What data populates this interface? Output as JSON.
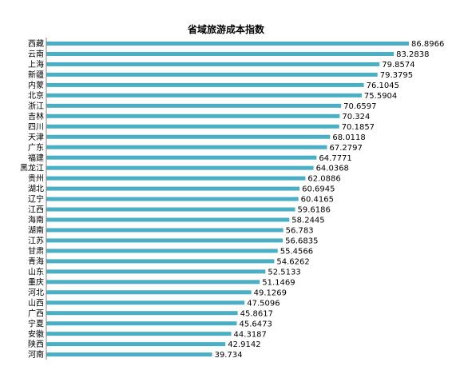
{
  "chart_data": {
    "type": "bar",
    "orientation": "horizontal",
    "title": "省域旅游成本指数",
    "xlabel": "",
    "ylabel": "",
    "xlim": [
      0,
      90
    ],
    "grid": false,
    "legend": "none",
    "bar_color": "#4aaec4",
    "categories": [
      "西藏",
      "云南",
      "上海",
      "新疆",
      "内蒙",
      "北京",
      "浙江",
      "吉林",
      "四川",
      "天津",
      "广东",
      "福建",
      "黑龙江",
      "贵州",
      "湖北",
      "辽宁",
      "江西",
      "海南",
      "湖南",
      "江苏",
      "甘肃",
      "青海",
      "山东",
      "重庆",
      "河北",
      "山西",
      "广西",
      "宁夏",
      "安徽",
      "陕西",
      "河南"
    ],
    "values": [
      86.8966,
      83.2838,
      79.8574,
      79.3795,
      76.1045,
      75.5904,
      70.6597,
      70.324,
      70.1857,
      68.0118,
      67.2797,
      64.7771,
      64.0368,
      62.0886,
      60.6945,
      60.4165,
      59.6186,
      58.2445,
      56.783,
      56.6835,
      55.4566,
      54.6262,
      52.5133,
      51.1469,
      49.1269,
      47.5096,
      45.8617,
      45.6473,
      44.3187,
      42.9142,
      39.734
    ],
    "data_labels": [
      "86.8966",
      "83.2838",
      "79.8574",
      "79.3795",
      "76.1045",
      "75.5904",
      "70.6597",
      "70.324",
      "70.1857",
      "68.0118",
      "67.2797",
      "64.7771",
      "64.0368",
      "62.0886",
      "60.6945",
      "60.4165",
      "59.6186",
      "58.2445",
      "56.783",
      "56.6835",
      "55.4566",
      "54.6262",
      "52.5133",
      "51.1469",
      "49.1269",
      "47.5096",
      "45.8617",
      "45.6473",
      "44.3187",
      "42.9142",
      "39.734"
    ]
  }
}
